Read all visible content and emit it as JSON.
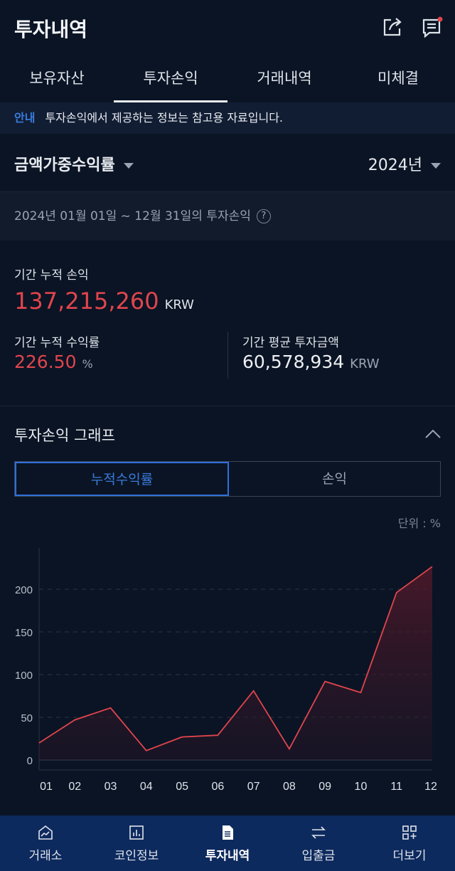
{
  "header": {
    "title": "투자내역",
    "icons": [
      "share-icon",
      "notice-icon"
    ]
  },
  "tabs": [
    {
      "label": "보유자산"
    },
    {
      "label": "투자손익",
      "active": true
    },
    {
      "label": "거래내역"
    },
    {
      "label": "미체결"
    }
  ],
  "notice": {
    "tag": "안내",
    "text": "투자손익에서 제공하는 정보는 참고용 자료입니다."
  },
  "selector": {
    "type": "금액가중수익률",
    "year": "2024년"
  },
  "period": {
    "text": "2024년 01월 01일 ~ 12월 31일의 투자손익",
    "help": "?"
  },
  "summary": {
    "cum_pl_label": "기간 누적 손익",
    "cum_pl_value": "137,215,260",
    "cum_pl_unit": "KRW",
    "cum_rate_label": "기간 누적 수익률",
    "cum_rate_value": "226.50",
    "cum_rate_unit": "%",
    "avg_inv_label": "기간 평균 투자금액",
    "avg_inv_value": "60,578,934",
    "avg_inv_unit": "KRW"
  },
  "graph": {
    "title": "투자손익 그래프",
    "toggle_a": "누적수익률",
    "toggle_b": "손익",
    "unit_label": "단위 : %"
  },
  "chart_data": {
    "type": "area",
    "categories": [
      "01",
      "02",
      "03",
      "04",
      "05",
      "06",
      "07",
      "08",
      "09",
      "10",
      "11",
      "12"
    ],
    "values": [
      20,
      47,
      61,
      11,
      27,
      29,
      81,
      13,
      92,
      79,
      196,
      226.5
    ],
    "yticks": [
      0,
      50,
      100,
      150,
      200
    ],
    "ylim": [
      -10,
      250
    ],
    "grid": true,
    "line_color": "#e0454d"
  },
  "nav": [
    {
      "label": "거래소",
      "icon": "exchange-chart-icon"
    },
    {
      "label": "코인정보",
      "icon": "bar-chart-icon"
    },
    {
      "label": "투자내역",
      "icon": "document-icon",
      "active": true
    },
    {
      "label": "입출금",
      "icon": "transfer-arrows-icon"
    },
    {
      "label": "더보기",
      "icon": "more-grid-icon"
    }
  ]
}
